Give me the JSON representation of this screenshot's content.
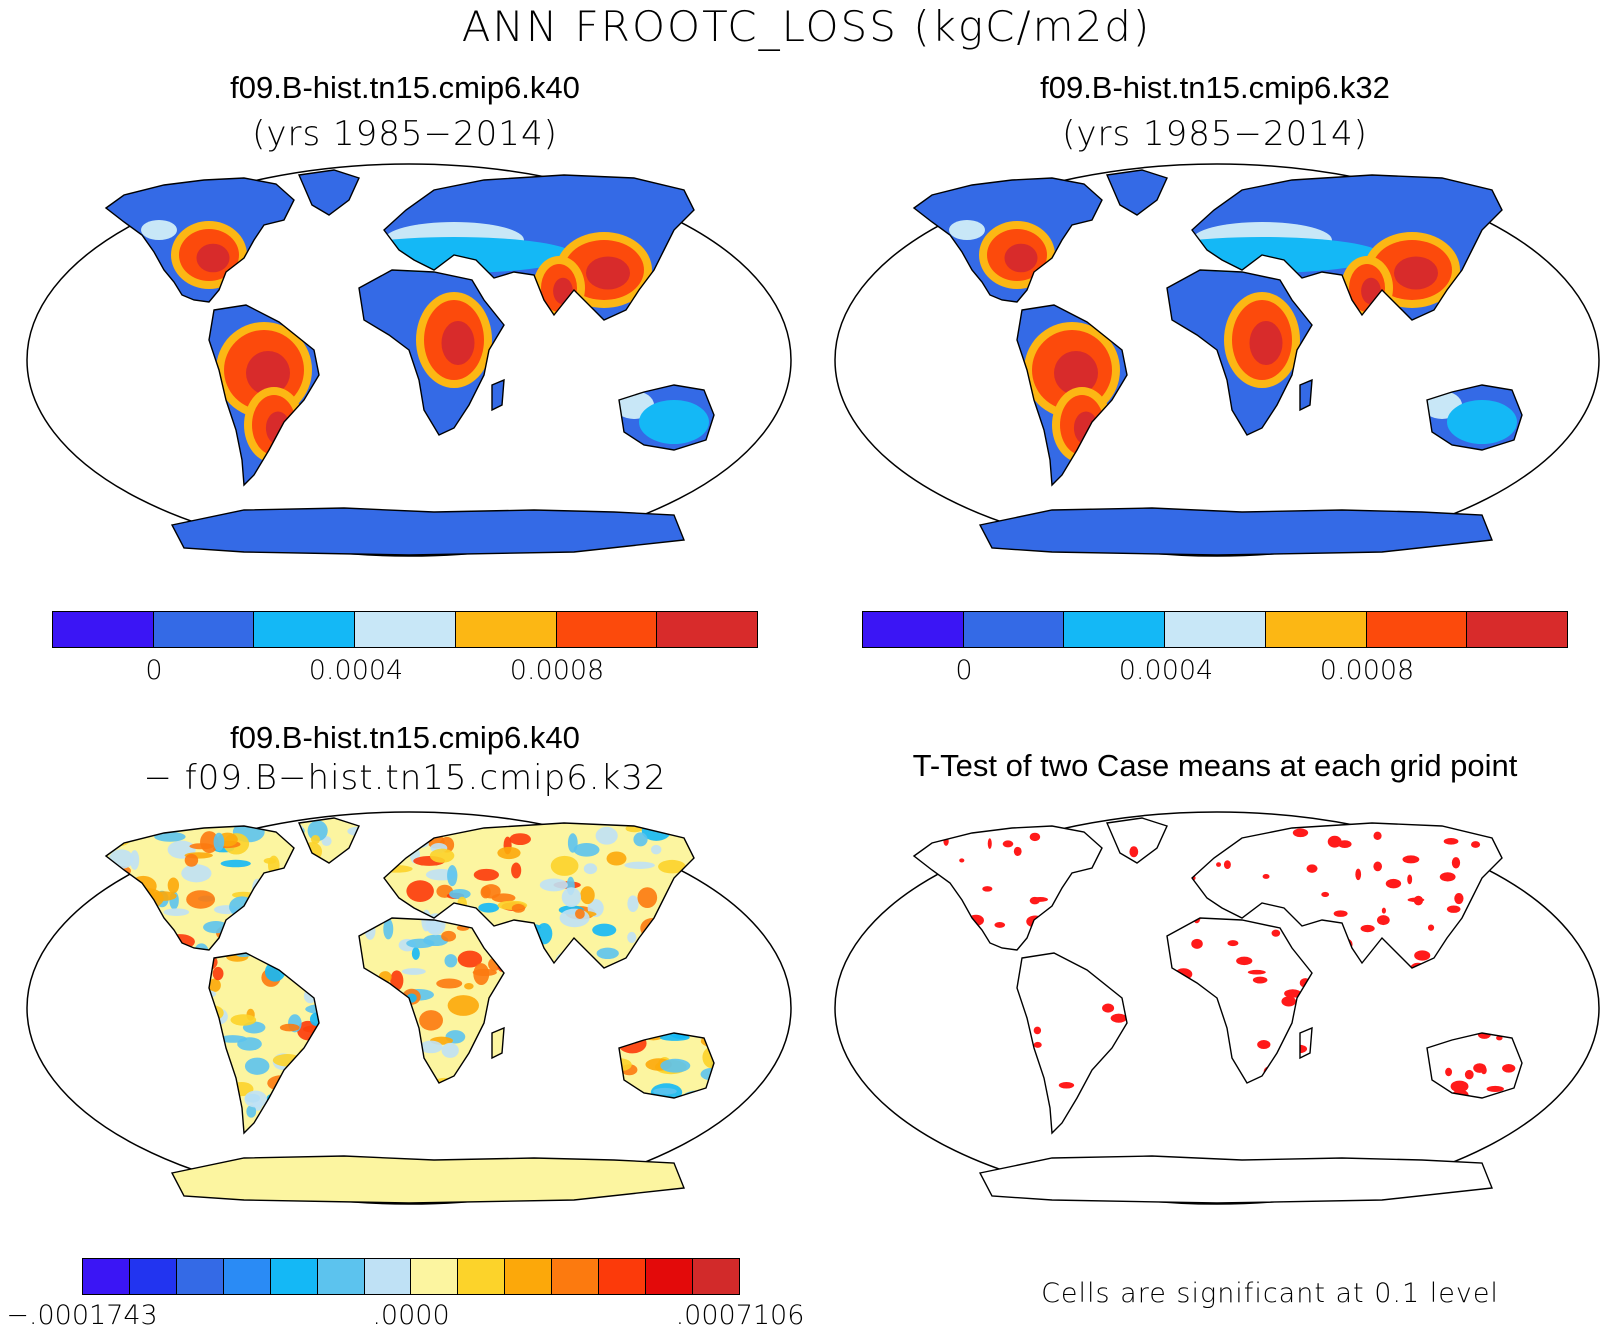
{
  "main_title": "ANN FROOTC_LOSS (kgC/m2d)",
  "panels": {
    "top_left": {
      "title": "f09.B-hist.tn15.cmip6.k40",
      "subtitle": "(yrs 1985−2014)"
    },
    "top_right": {
      "title": "f09.B-hist.tn15.cmip6.k32",
      "subtitle": "(yrs 1985−2014)"
    },
    "bottom_left": {
      "title": "f09.B-hist.tn15.cmip6.k40",
      "subtitle": "− f09.B−hist.tn15.cmip6.k32"
    },
    "bottom_right": {
      "title": "T-Test of two Case means at each grid point",
      "note": "Cells are significant at 0.1 level"
    }
  },
  "colorbars": {
    "cases": {
      "colors": [
        "#3b15f5",
        "#346ae6",
        "#14b8f6",
        "#c8e7f7",
        "#fcb714",
        "#fc4a0c",
        "#d82b2b"
      ],
      "ticks": [
        "0",
        "0.0004",
        "0.0008"
      ]
    },
    "difference": {
      "colors": [
        "#3b15f5",
        "#2234f0",
        "#346ae6",
        "#2a8bf5",
        "#14b8f6",
        "#5cc3ee",
        "#bfe1f5",
        "#fcf5a0",
        "#fcd32a",
        "#fca80a",
        "#fc7a0f",
        "#fc3a0a",
        "#e30a0a",
        "#d22a2a"
      ],
      "ticks": [
        "−.0001743",
        ".0000",
        ".0007106"
      ]
    }
  },
  "colors": {
    "ocean": "#ffffff",
    "antarctica_case": "#346ae6",
    "antarctica_diff": "#fcf5a0",
    "significant": "#ff1a1a",
    "coastline": "#000000"
  }
}
